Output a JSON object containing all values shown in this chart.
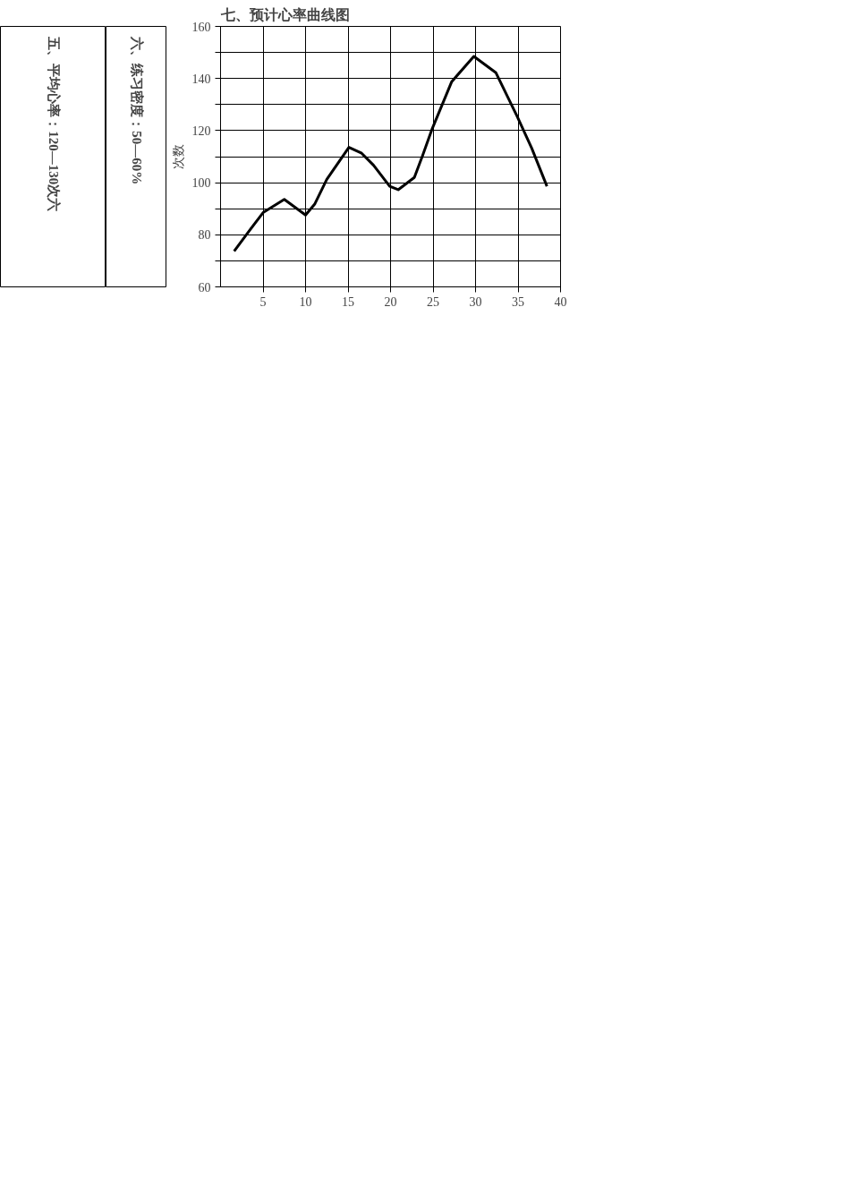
{
  "chart_data": {
    "type": "line",
    "title": "七、预计心率曲线图",
    "ylabel": "次数",
    "annotations": [
      "五、平均心率：120—130次六",
      "六、练习密度：50—60%"
    ],
    "series": [
      {
        "color": "#000000",
        "x": [
          1.6,
          3.3,
          5,
          7.5,
          10,
          11.1,
          12.5,
          15.1,
          16.6,
          18,
          19.9,
          20.9,
          22.8,
          23.8,
          24.9,
          27.2,
          29.8,
          32.4,
          34.9,
          36.6,
          38.4
        ],
        "values": [
          73.7,
          81.2,
          88.5,
          93.6,
          87.6,
          91.9,
          101.3,
          113.6,
          111.3,
          106.7,
          98.6,
          97.3,
          102,
          110.7,
          120.7,
          138.8,
          148.5,
          142.2,
          125.4,
          113.3,
          98.6
        ]
      }
    ],
    "xlim": [
      0,
      40
    ],
    "xticks": [
      5,
      10,
      15,
      20,
      25,
      30,
      35,
      40
    ],
    "ylim": [
      60,
      160
    ],
    "yticks": [
      60,
      {
        "value": 70,
        "label": null
      },
      80,
      {
        "value": 90,
        "label": null
      },
      100,
      {
        "value": 110,
        "label": null
      },
      120,
      {
        "value": 130,
        "label": null
      },
      140,
      {
        "value": 150,
        "label": null
      },
      160
    ],
    "grid": true,
    "marker": "none",
    "line_style": "solid"
  }
}
